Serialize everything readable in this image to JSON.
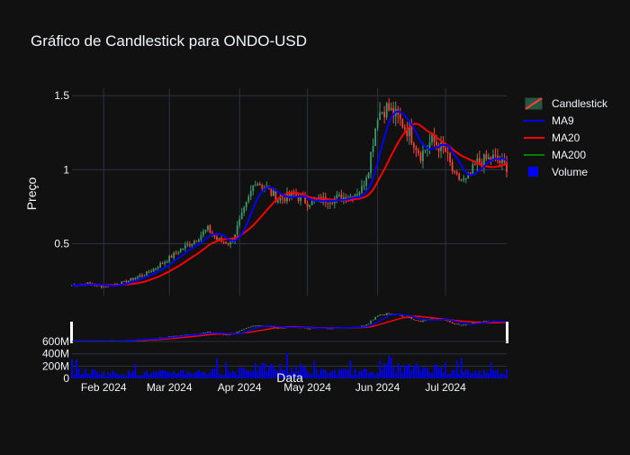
{
  "chart_data": {
    "type": "candlestick",
    "title": "Gráfico de Candlestick para ONDO-USD",
    "ylabel": "Preço",
    "xlabel": "Data",
    "x_range": [
      "2024-01-18",
      "2024-07-28"
    ],
    "x_ticks": [
      {
        "date": "2024-02-01",
        "label": "Feb 2024"
      },
      {
        "date": "2024-03-01",
        "label": "Mar 2024"
      },
      {
        "date": "2024-04-01",
        "label": "Apr 2024"
      },
      {
        "date": "2024-05-01",
        "label": "May 2024"
      },
      {
        "date": "2024-06-01",
        "label": "Jun 2024"
      },
      {
        "date": "2024-07-01",
        "label": "Jul 2024"
      }
    ],
    "price_ylim": [
      0.15,
      1.55
    ],
    "price_ticks": [
      {
        "v": 0.5,
        "label": "0.5"
      },
      {
        "v": 1,
        "label": "1"
      },
      {
        "v": 1.5,
        "label": "1.5"
      }
    ],
    "volume_ylim": [
      0,
      850000000
    ],
    "volume_ticks": [
      {
        "v": 0,
        "label": "0"
      },
      {
        "v": 200000000,
        "label": "200M"
      },
      {
        "v": 400000000,
        "label": "400M"
      },
      {
        "v": 600000000,
        "label": "600M"
      }
    ],
    "close_anchors": [
      [
        "2024-01-18",
        0.22
      ],
      [
        "2024-01-25",
        0.23
      ],
      [
        "2024-02-01",
        0.21
      ],
      [
        "2024-02-10",
        0.24
      ],
      [
        "2024-02-20",
        0.3
      ],
      [
        "2024-02-28",
        0.38
      ],
      [
        "2024-03-05",
        0.45
      ],
      [
        "2024-03-12",
        0.52
      ],
      [
        "2024-03-18",
        0.6
      ],
      [
        "2024-03-22",
        0.53
      ],
      [
        "2024-03-28",
        0.5
      ],
      [
        "2024-04-03",
        0.72
      ],
      [
        "2024-04-08",
        0.93
      ],
      [
        "2024-04-12",
        0.88
      ],
      [
        "2024-04-18",
        0.8
      ],
      [
        "2024-04-25",
        0.83
      ],
      [
        "2024-05-01",
        0.78
      ],
      [
        "2024-05-10",
        0.8
      ],
      [
        "2024-05-20",
        0.82
      ],
      [
        "2024-05-25",
        0.87
      ],
      [
        "2024-05-28",
        1.02
      ],
      [
        "2024-06-01",
        1.38
      ],
      [
        "2024-06-05",
        1.42
      ],
      [
        "2024-06-10",
        1.35
      ],
      [
        "2024-06-15",
        1.25
      ],
      [
        "2024-06-20",
        1.1
      ],
      [
        "2024-06-25",
        1.2
      ],
      [
        "2024-07-01",
        1.12
      ],
      [
        "2024-07-05",
        0.95
      ],
      [
        "2024-07-10",
        0.92
      ],
      [
        "2024-07-15",
        1.05
      ],
      [
        "2024-07-22",
        1.08
      ],
      [
        "2024-07-28",
        1.02
      ]
    ],
    "series": [
      {
        "name": "Candlestick",
        "color_up": "#3d9970",
        "color_down": "#ff4136"
      },
      {
        "name": "MA9",
        "color": "#0000ff"
      },
      {
        "name": "MA20",
        "color": "#ff0000"
      },
      {
        "name": "MA200",
        "color": "#008000"
      },
      {
        "name": "Volume",
        "color": "#0000ff"
      }
    ],
    "legend_position": "top-right",
    "grid": true
  }
}
